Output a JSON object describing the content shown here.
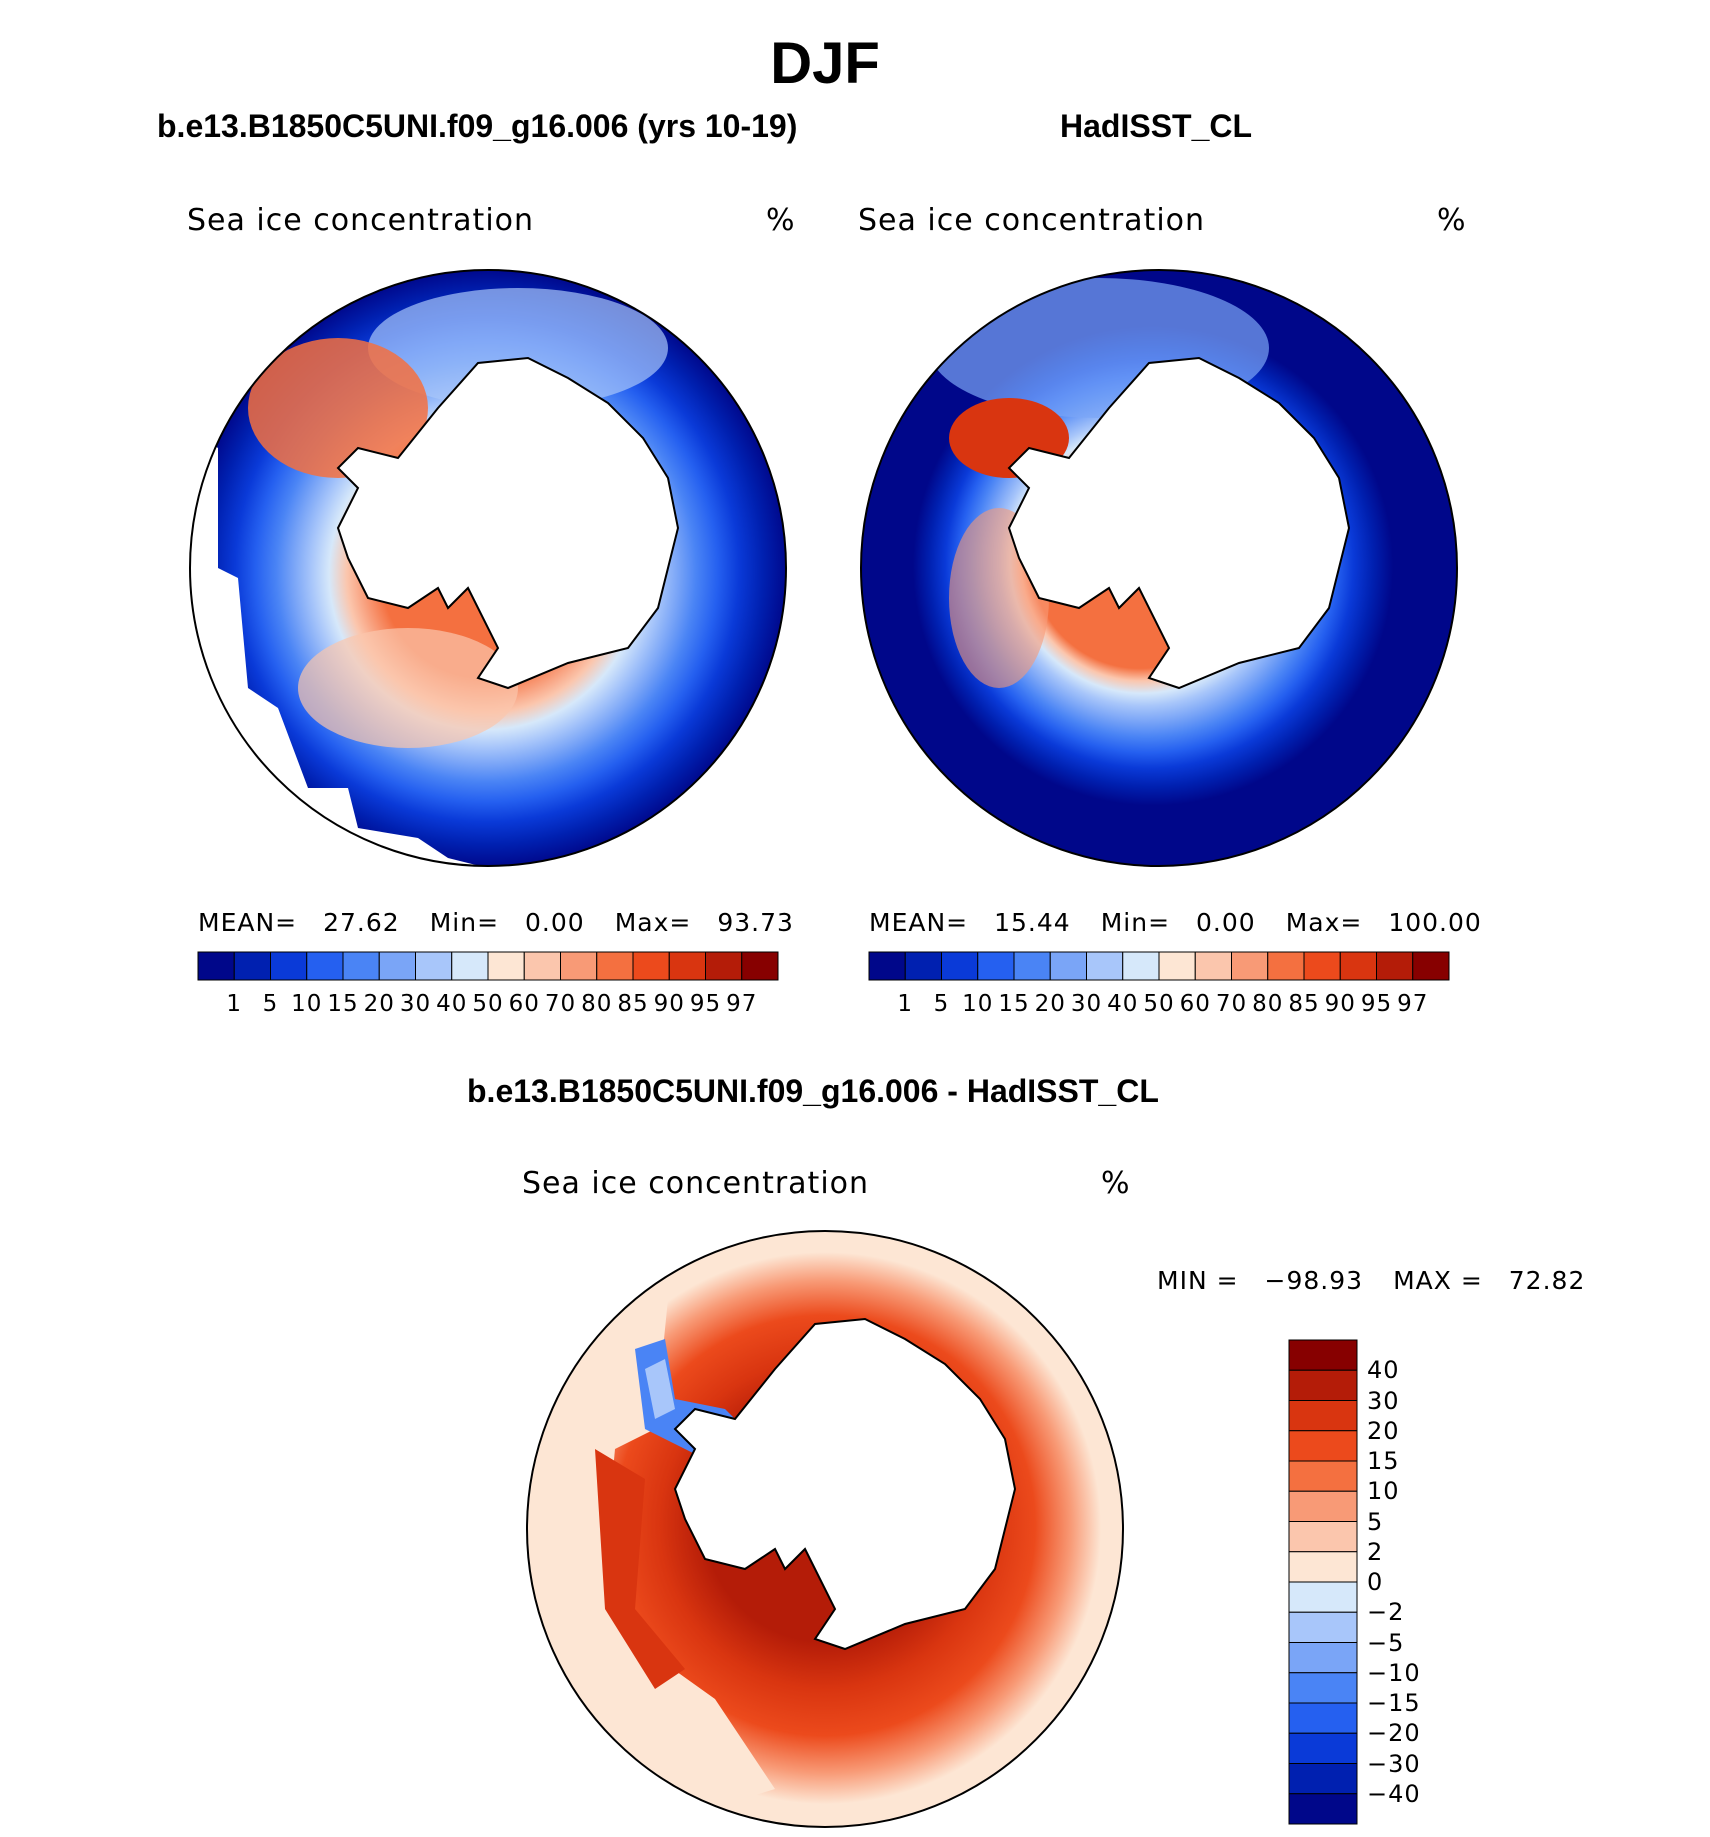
{
  "figure": {
    "title": "DJF"
  },
  "panels": [
    {
      "title": "b.e13.B1850C5UNI.f09_g16.006 (yrs 10-19)",
      "variable": "Sea ice concentration",
      "unit": "%",
      "stats": {
        "mean_label": "MEAN=",
        "mean": "27.62",
        "min_label": "Min=",
        "min": "0.00",
        "max_label": "Max=",
        "max": "93.73"
      },
      "colorbar_ticks": [
        "1",
        "5",
        "10",
        "15",
        "20",
        "30",
        "40",
        "50",
        "60",
        "70",
        "80",
        "85",
        "90",
        "95",
        "97"
      ],
      "map_character": "model"
    },
    {
      "title": "HadISST_CL",
      "variable": "Sea ice concentration",
      "unit": "%",
      "stats": {
        "mean_label": "MEAN=",
        "mean": "15.44",
        "min_label": "Min=",
        "min": "0.00",
        "max_label": "Max=",
        "max": "100.00"
      },
      "colorbar_ticks": [
        "1",
        "5",
        "10",
        "15",
        "20",
        "30",
        "40",
        "50",
        "60",
        "70",
        "80",
        "85",
        "90",
        "95",
        "97"
      ],
      "map_character": "observed"
    }
  ],
  "difference": {
    "title": "b.e13.B1850C5UNI.f09_g16.006 - HadISST_CL",
    "variable": "Sea ice concentration",
    "unit": "%",
    "stats": {
      "min_label": "MIN =",
      "min": "−98.93",
      "max_label": "MAX =",
      "max": "72.82"
    },
    "colorbar_ticks": [
      "40",
      "30",
      "20",
      "15",
      "10",
      "5",
      "2",
      "0",
      "−2",
      "−5",
      "−10",
      "−15",
      "−20",
      "−30",
      "−40"
    ]
  },
  "colorscales": {
    "concentration": [
      "#00078a",
      "#0020b0",
      "#0a3ad8",
      "#2560f0",
      "#4a84f5",
      "#7aa5f7",
      "#a8c6fa",
      "#d6e8fa",
      "#fde6d4",
      "#fbc6ad",
      "#f89a76",
      "#f47040",
      "#ec4a1c",
      "#d93510",
      "#b41c08",
      "#870000"
    ],
    "difference": [
      "#870000",
      "#b41c08",
      "#d93510",
      "#ec4a1c",
      "#f47040",
      "#f89a76",
      "#fbc6ad",
      "#fde6d4",
      "#d6e8fa",
      "#a8c6fa",
      "#7aa5f7",
      "#4a84f5",
      "#2560f0",
      "#0a3ad8",
      "#0020b0",
      "#00078a"
    ]
  }
}
